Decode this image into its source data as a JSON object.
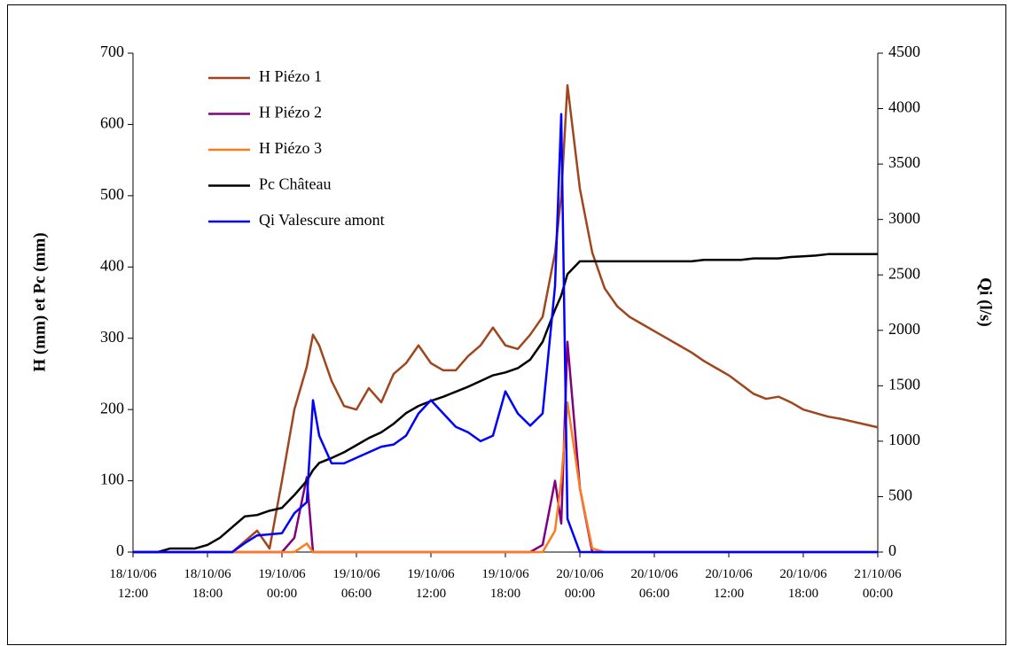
{
  "chart_data": {
    "type": "line",
    "y_label": "H (mm) et Pc (mm)",
    "y2_label": "Qi (l/s)",
    "x": [
      "18/10/06 12:00",
      "18/10/06 13:00",
      "18/10/06 14:00",
      "18/10/06 15:00",
      "18/10/06 16:00",
      "18/10/06 17:00",
      "18/10/06 18:00",
      "18/10/06 19:00",
      "18/10/06 20:00",
      "18/10/06 21:00",
      "18/10/06 22:00",
      "18/10/06 23:00",
      "19/10/06 00:00",
      "19/10/06 01:00",
      "19/10/06 02:00",
      "19/10/06 02:30",
      "19/10/06 03:00",
      "19/10/06 04:00",
      "19/10/06 05:00",
      "19/10/06 06:00",
      "19/10/06 07:00",
      "19/10/06 08:00",
      "19/10/06 09:00",
      "19/10/06 10:00",
      "19/10/06 11:00",
      "19/10/06 12:00",
      "19/10/06 13:00",
      "19/10/06 14:00",
      "19/10/06 15:00",
      "19/10/06 16:00",
      "19/10/06 17:00",
      "19/10/06 18:00",
      "19/10/06 19:00",
      "19/10/06 20:00",
      "19/10/06 21:00",
      "19/10/06 22:00",
      "19/10/06 22:30",
      "19/10/06 23:00",
      "20/10/06 00:00",
      "20/10/06 01:00",
      "20/10/06 02:00",
      "20/10/06 03:00",
      "20/10/06 04:00",
      "20/10/06 05:00",
      "20/10/06 06:00",
      "20/10/06 07:00",
      "20/10/06 08:00",
      "20/10/06 09:00",
      "20/10/06 10:00",
      "20/10/06 11:00",
      "20/10/06 12:00",
      "20/10/06 13:00",
      "20/10/06 14:00",
      "20/10/06 15:00",
      "20/10/06 16:00",
      "20/10/06 17:00",
      "20/10/06 18:00",
      "20/10/06 19:00",
      "20/10/06 20:00",
      "20/10/06 21:00",
      "20/10/06 22:00",
      "20/10/06 23:00",
      "21/10/06 00:00"
    ],
    "xlim": [
      "18/10/06 12:00",
      "21/10/06 00:00"
    ],
    "xticks": [
      "18/10/06 12:00",
      "18/10/06 18:00",
      "19/10/06 00:00",
      "19/10/06 06:00",
      "19/10/06 12:00",
      "19/10/06 18:00",
      "20/10/06 00:00",
      "20/10/06 06:00",
      "20/10/06 12:00",
      "20/10/06 18:00",
      "21/10/06 00:00"
    ],
    "ylim": [
      0,
      700
    ],
    "yticks": [
      0,
      100,
      200,
      300,
      400,
      500,
      600,
      700
    ],
    "y2lim": [
      0,
      4500
    ],
    "y2ticks": [
      0,
      500,
      1000,
      1500,
      2000,
      2500,
      3000,
      3500,
      4000,
      4500
    ],
    "series": [
      {
        "name": "H Piézo 1",
        "color": "#a0461e",
        "values": [
          0,
          0,
          0,
          0,
          0,
          0,
          0,
          0,
          0,
          15,
          30,
          5,
          100,
          200,
          260,
          305,
          290,
          240,
          205,
          200,
          230,
          210,
          250,
          265,
          290,
          265,
          255,
          255,
          275,
          290,
          315,
          290,
          285,
          305,
          330,
          420,
          500,
          655,
          510,
          420,
          370,
          345,
          330,
          320,
          310,
          300,
          290,
          280,
          268,
          258,
          248,
          235,
          222,
          215,
          218,
          210,
          200,
          195,
          190,
          187,
          183,
          179,
          175
        ]
      },
      {
        "name": "H Piézo 2",
        "color": "#800080",
        "values": [
          0,
          0,
          0,
          0,
          0,
          0,
          0,
          0,
          0,
          0,
          0,
          0,
          0,
          20,
          105,
          0,
          0,
          0,
          0,
          0,
          0,
          0,
          0,
          0,
          0,
          0,
          0,
          0,
          0,
          0,
          0,
          0,
          0,
          0,
          10,
          100,
          40,
          295,
          90,
          0,
          0,
          0,
          0,
          0,
          0,
          0,
          0,
          0,
          0,
          0,
          0,
          0,
          0,
          0,
          0,
          0,
          0,
          0,
          0,
          0,
          0,
          0,
          0
        ]
      },
      {
        "name": "H Piézo 3",
        "color": "#ff7a1a",
        "values": [
          0,
          0,
          0,
          0,
          0,
          0,
          0,
          0,
          0,
          0,
          0,
          0,
          0,
          0,
          12,
          0,
          0,
          0,
          0,
          0,
          0,
          0,
          0,
          0,
          0,
          0,
          0,
          0,
          0,
          0,
          0,
          0,
          0,
          0,
          0,
          30,
          100,
          210,
          90,
          5,
          0,
          0,
          0,
          0,
          0,
          0,
          0,
          0,
          0,
          0,
          0,
          0,
          0,
          0,
          0,
          0,
          0,
          0,
          0,
          0,
          0,
          0,
          0
        ]
      },
      {
        "name": "Pc Château",
        "color": "#000000",
        "values": [
          0,
          0,
          0,
          5,
          5,
          5,
          10,
          20,
          35,
          50,
          52,
          58,
          62,
          80,
          100,
          115,
          125,
          132,
          140,
          150,
          160,
          168,
          180,
          195,
          205,
          212,
          218,
          225,
          232,
          240,
          248,
          252,
          258,
          270,
          295,
          340,
          360,
          390,
          408,
          408,
          408,
          408,
          408,
          408,
          408,
          408,
          408,
          408,
          410,
          410,
          410,
          410,
          412,
          412,
          412,
          414,
          415,
          416,
          418,
          418,
          418,
          418,
          418
        ]
      },
      {
        "name": "Qi Valescure amont",
        "color": "#0000ff",
        "axis": "y2",
        "values": [
          0,
          0,
          0,
          0,
          0,
          0,
          0,
          0,
          0,
          80,
          150,
          160,
          170,
          350,
          450,
          1370,
          1050,
          800,
          800,
          850,
          900,
          950,
          970,
          1050,
          1250,
          1370,
          1250,
          1130,
          1080,
          1000,
          1050,
          1450,
          1250,
          1140,
          1250,
          2400,
          3950,
          300,
          0,
          0,
          0,
          0,
          0,
          0,
          0,
          0,
          0,
          0,
          0,
          0,
          0,
          0,
          0,
          0,
          0,
          0,
          0,
          0,
          0,
          0,
          0,
          0,
          0
        ]
      }
    ]
  }
}
